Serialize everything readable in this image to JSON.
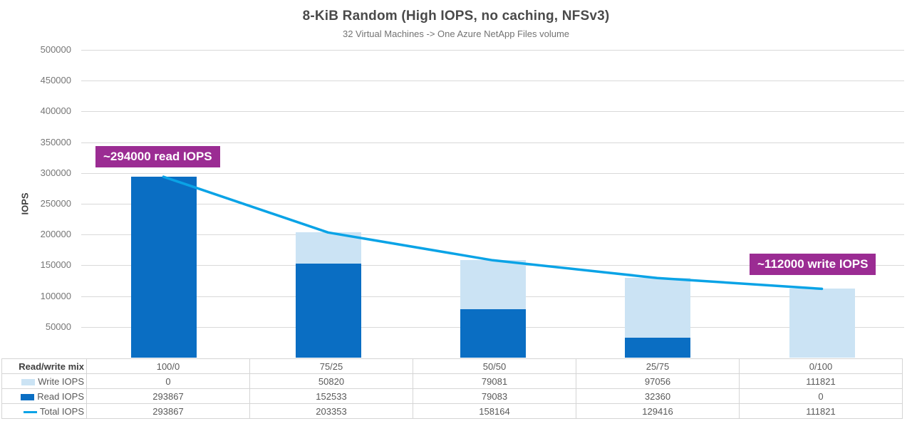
{
  "header": {
    "title": "8-KiB Random (High IOPS, no caching, NFSv3)",
    "subtitle": "32 Virtual Machines -> One Azure NetApp Files volume"
  },
  "chart_data": {
    "type": "bar",
    "stacked": true,
    "title": "8-KiB Random (High IOPS, no caching, NFSv3)",
    "subtitle": "32 Virtual Machines -> One Azure NetApp Files volume",
    "ylabel": "IOPS",
    "xlabel": "Read/write mix",
    "ylim": [
      0,
      500000
    ],
    "ytick_step": 50000,
    "grid": true,
    "legend_position": "table-left",
    "categories": [
      "100/0",
      "75/25",
      "50/50",
      "25/75",
      "0/100"
    ],
    "series": [
      {
        "name": "Write IOPS",
        "type": "bar",
        "color": "#cbe3f4",
        "values": [
          0,
          50820,
          79081,
          97056,
          111821
        ]
      },
      {
        "name": "Read IOPS",
        "type": "bar",
        "color": "#0a6ec3",
        "values": [
          293867,
          152533,
          79083,
          32360,
          0
        ]
      },
      {
        "name": "Total IOPS",
        "type": "line",
        "color": "#0aa3e6",
        "values": [
          293867,
          203353,
          158164,
          129416,
          111821
        ]
      }
    ],
    "annotations": [
      {
        "text": "~294000 read IOPS",
        "color": "#9b2c93"
      },
      {
        "text": "~112000 write IOPS",
        "color": "#9b2c93"
      }
    ],
    "colors": {
      "gridline": "#d9d9d9",
      "tick_text": "#767676",
      "title_text": "#4a4a4a"
    }
  }
}
